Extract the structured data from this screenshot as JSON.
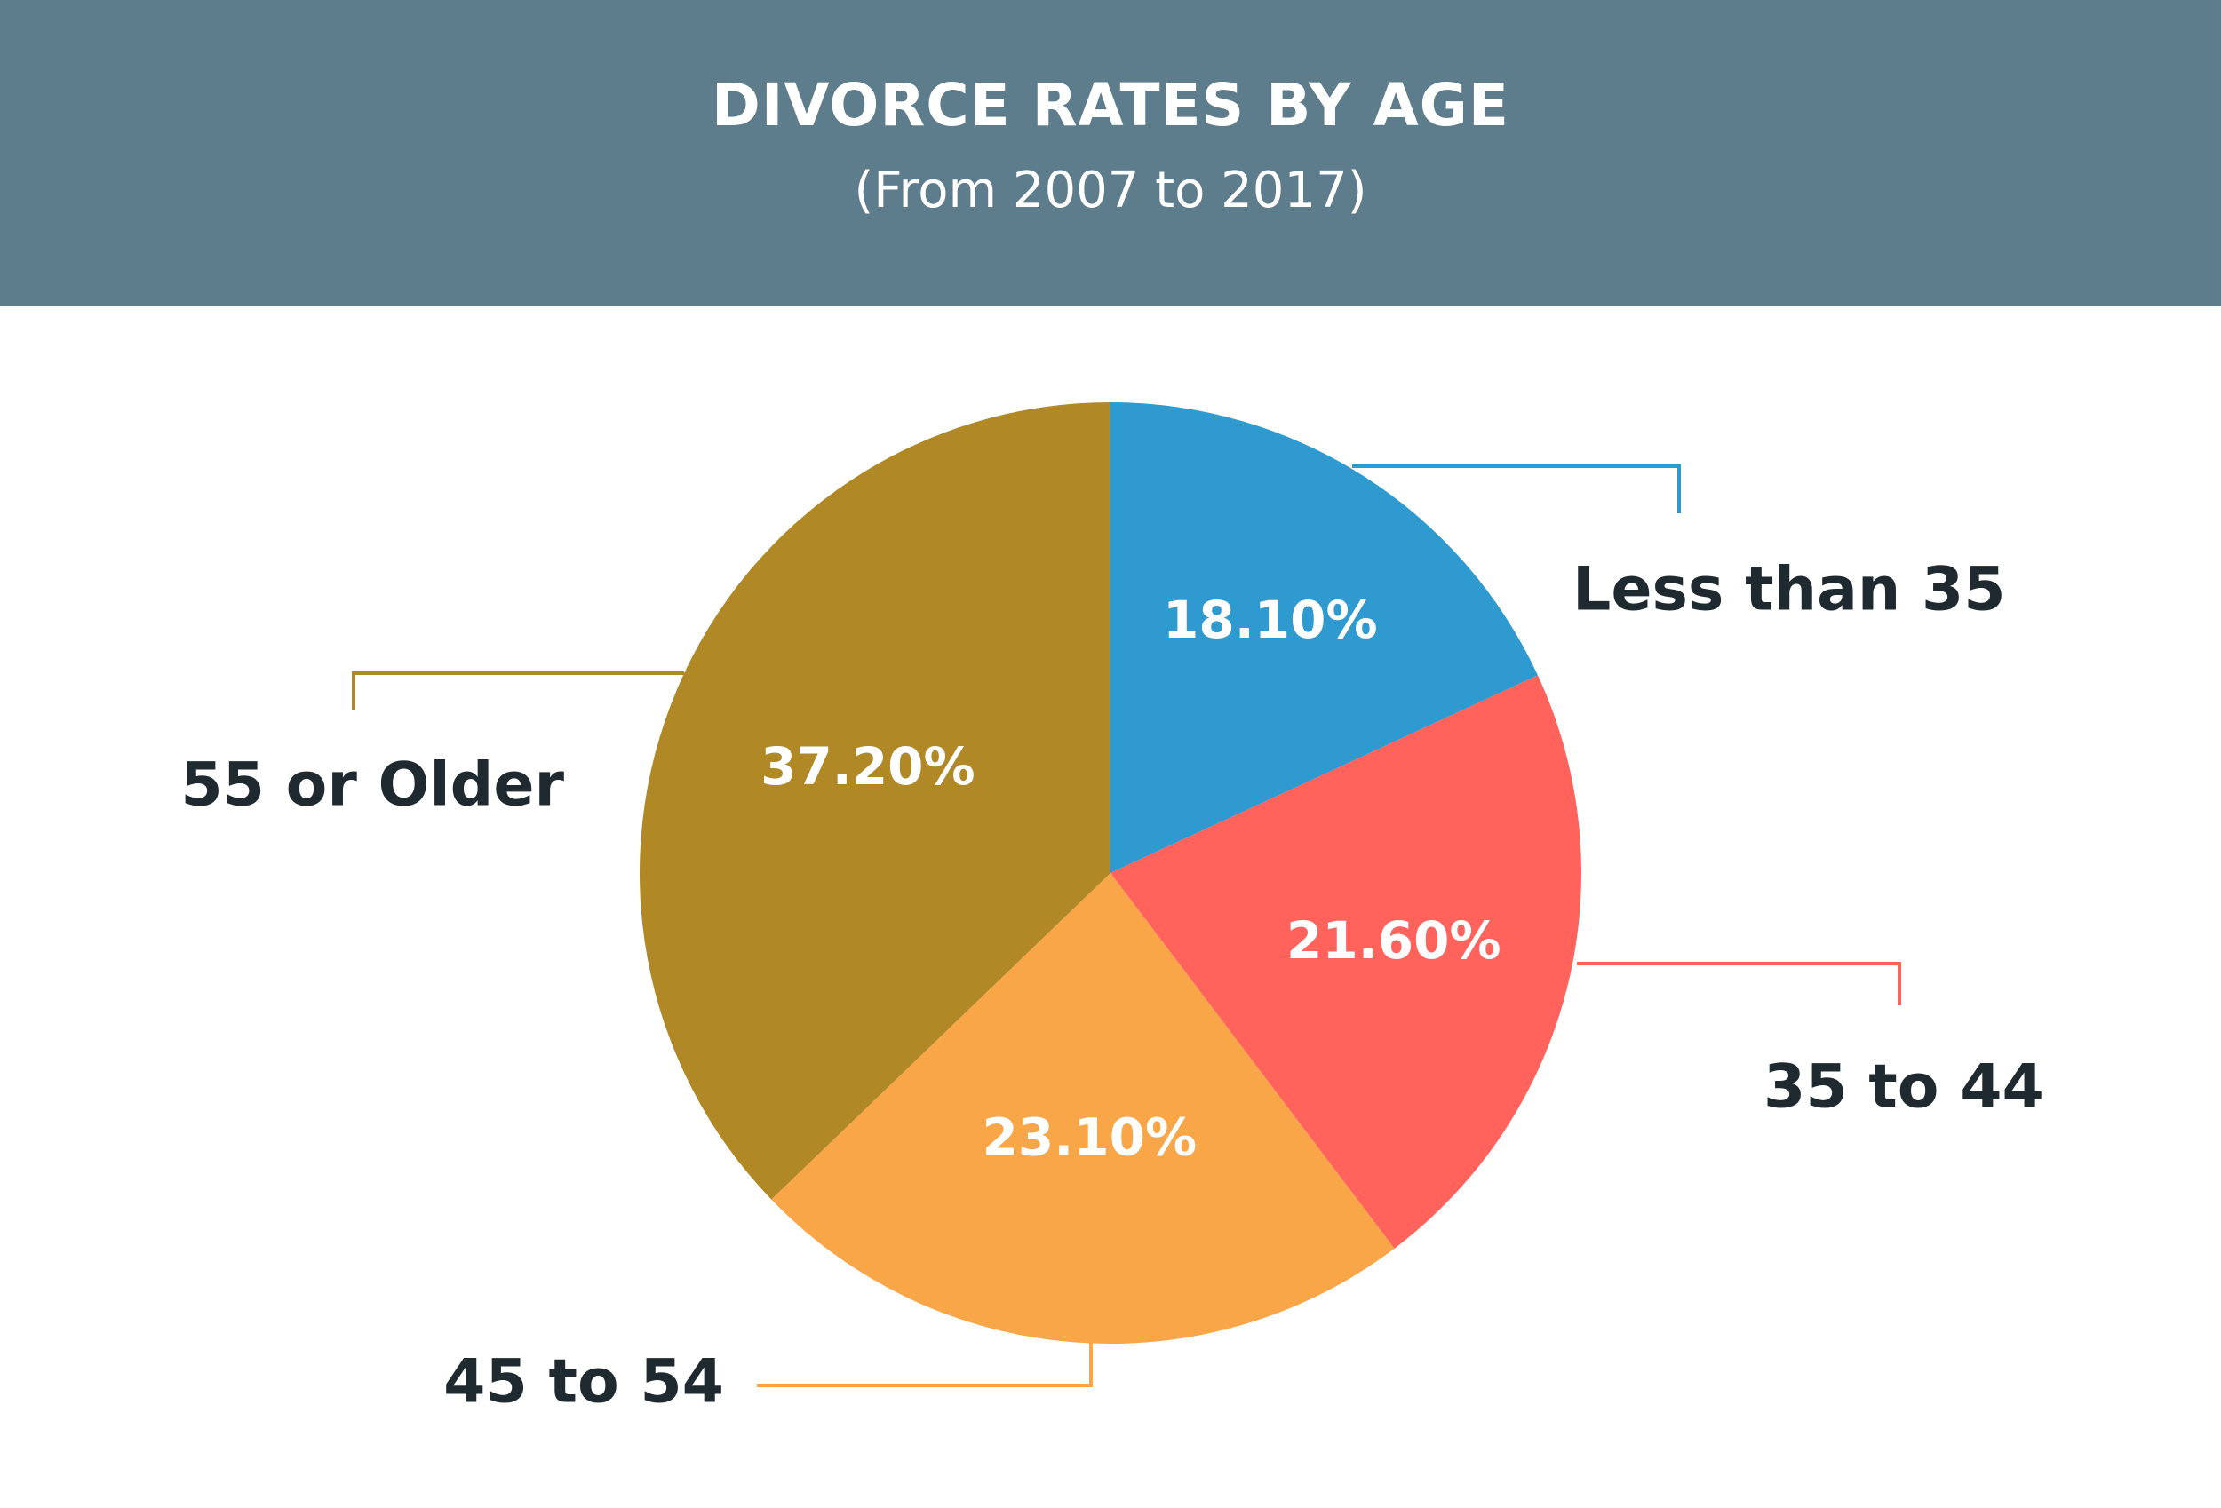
{
  "header": {
    "title": "DIVORCE RATES BY AGE",
    "subtitle": "(From 2007 to 2017)"
  },
  "chart_data": {
    "type": "pie",
    "title": "DIVORCE RATES BY AGE",
    "subtitle": "(From 2007 to 2017)",
    "unit": "%",
    "categories": [
      "Less than 35",
      "35 to 44",
      "45 to 54",
      "55 or Older"
    ],
    "values": [
      18.1,
      21.6,
      23.1,
      37.2
    ],
    "value_labels": [
      "18.10%",
      "21.60%",
      "23.10%",
      "37.20%"
    ],
    "colors": [
      "#2e9ad0",
      "#ff635c",
      "#f8a647",
      "#b18826"
    ],
    "start_angle": "12 o'clock",
    "direction": "clockwise",
    "legend": "callout labels with leader lines"
  },
  "colors": {
    "header_background": "#5e7d8c",
    "header_text": "#ffffff",
    "label_text": "#1f2a30",
    "slice_text": "#ffffff"
  }
}
